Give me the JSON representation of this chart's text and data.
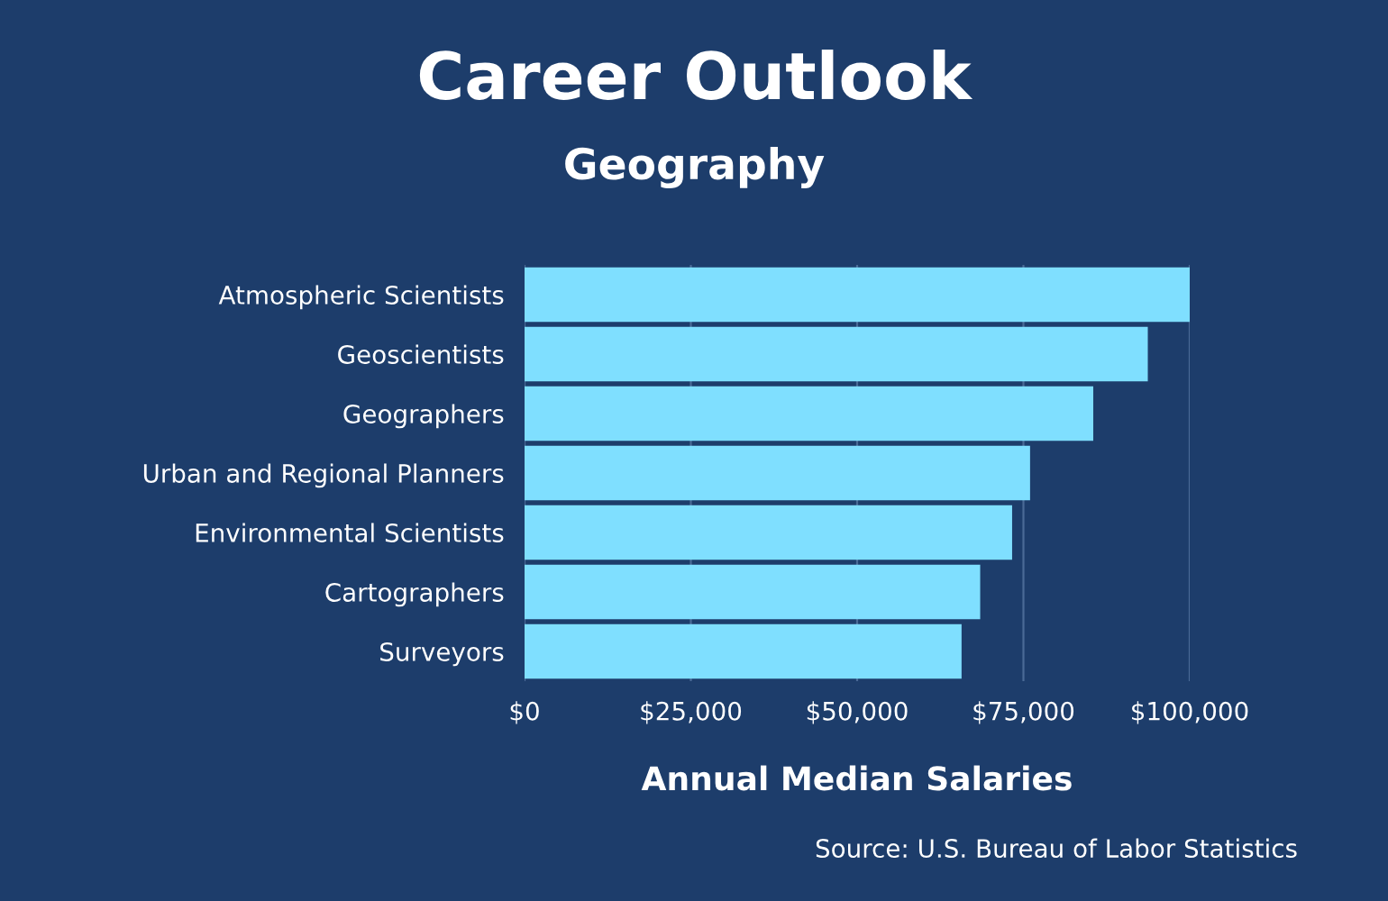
{
  "chart_data": {
    "type": "bar",
    "orientation": "horizontal",
    "title": "Career Outlook",
    "subtitle": "Geography",
    "xlabel": "Annual Median Salaries",
    "categories": [
      "Atmospheric Scientists",
      "Geoscientists",
      "Geographers",
      "Urban and Regional Planners",
      "Environmental Scientists",
      "Cartographers",
      "Surveyors"
    ],
    "values": [
      100000,
      93700,
      85500,
      76000,
      73300,
      68500,
      65700
    ],
    "color": "#7fdfff",
    "xlim": [
      0,
      100000
    ],
    "xticks": [
      {
        "value": 0,
        "label": "$0"
      },
      {
        "value": 25000,
        "label": "$25,000"
      },
      {
        "value": 50000,
        "label": "$50,000"
      },
      {
        "value": 75000,
        "label": "$75,000"
      },
      {
        "value": 100000,
        "label": "$100,000"
      }
    ],
    "grid": "x",
    "annotations": [
      "Source: U.S. Bureau of Labor Statistics"
    ]
  }
}
